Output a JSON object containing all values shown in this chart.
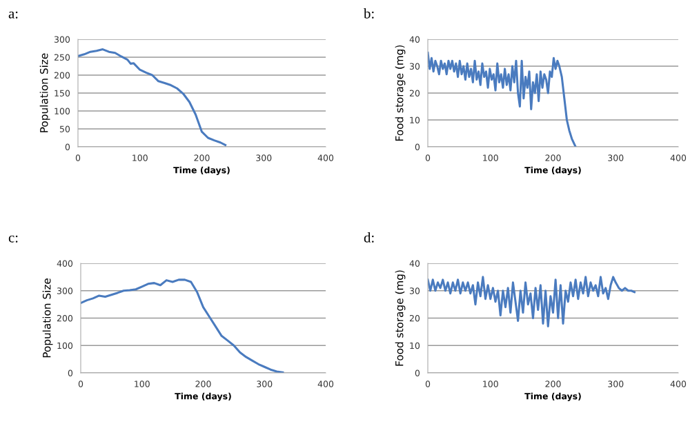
{
  "chart_data": [
    {
      "type": "line",
      "title": "a:",
      "xlabel": "Time (days)",
      "ylabel": "Population Size",
      "xlim": [
        0,
        400
      ],
      "ylim": [
        0,
        300
      ],
      "xticks": [
        0,
        100,
        200,
        300,
        400
      ],
      "yticks": [
        0,
        50,
        100,
        150,
        200,
        250,
        300
      ],
      "grid": "y",
      "legend": false,
      "series": [
        {
          "color": "#4a7bbf",
          "x": [
            0,
            10,
            20,
            30,
            40,
            50,
            60,
            70,
            80,
            85,
            90,
            100,
            110,
            120,
            130,
            140,
            150,
            160,
            170,
            180,
            190,
            200,
            210,
            220,
            230,
            238
          ],
          "values": [
            253,
            258,
            265,
            268,
            272,
            265,
            262,
            252,
            243,
            232,
            233,
            215,
            207,
            200,
            183,
            178,
            172,
            163,
            148,
            125,
            90,
            42,
            25,
            18,
            12,
            5
          ]
        }
      ]
    },
    {
      "type": "line",
      "title": "b:",
      "xlabel": "Time (days)",
      "ylabel": "Food storage (mg)",
      "xlim": [
        0,
        400
      ],
      "ylim": [
        0,
        40
      ],
      "xticks": [
        0,
        100,
        200,
        300,
        400
      ],
      "yticks": [
        0,
        10,
        20,
        30,
        40
      ],
      "grid": "y",
      "legend": false,
      "series": [
        {
          "color": "#4a7bbf",
          "x": [
            0,
            3,
            6,
            9,
            12,
            15,
            18,
            21,
            24,
            27,
            30,
            33,
            36,
            39,
            42,
            45,
            48,
            51,
            54,
            57,
            60,
            63,
            66,
            69,
            72,
            75,
            78,
            81,
            84,
            87,
            90,
            93,
            96,
            99,
            102,
            105,
            108,
            111,
            114,
            117,
            120,
            123,
            126,
            129,
            132,
            135,
            138,
            141,
            144,
            147,
            150,
            153,
            156,
            159,
            162,
            165,
            168,
            171,
            174,
            177,
            180,
            183,
            186,
            189,
            192,
            195,
            198,
            201,
            204,
            207,
            210,
            214,
            218,
            222,
            226,
            230,
            234,
            236
          ],
          "values": [
            35,
            29,
            33,
            28,
            32,
            30,
            27,
            32,
            29,
            31,
            27,
            32,
            29,
            32,
            28,
            31,
            26,
            32,
            27,
            30,
            25,
            31,
            26,
            29,
            24,
            32,
            25,
            28,
            23,
            31,
            26,
            28,
            22,
            29,
            25,
            27,
            21,
            31,
            24,
            27,
            22,
            29,
            23,
            27,
            21,
            30,
            24,
            32,
            20,
            15,
            32,
            18,
            26,
            22,
            28,
            14,
            24,
            20,
            27,
            17,
            28,
            22,
            27,
            25,
            20,
            28,
            26,
            33,
            29,
            32,
            30,
            26,
            18,
            10,
            6,
            3,
            1,
            0
          ]
        }
      ]
    },
    {
      "type": "line",
      "title": "c:",
      "xlabel": "Time (days)",
      "ylabel": "Population Size",
      "xlim": [
        0,
        400
      ],
      "ylim": [
        0,
        400
      ],
      "xticks": [
        0,
        100,
        200,
        300,
        400
      ],
      "yticks": [
        0,
        100,
        200,
        300,
        400
      ],
      "grid": "y",
      "legend": false,
      "series": [
        {
          "color": "#4a7bbf",
          "x": [
            0,
            10,
            20,
            30,
            40,
            50,
            60,
            70,
            80,
            90,
            100,
            110,
            120,
            130,
            140,
            150,
            160,
            170,
            180,
            190,
            200,
            210,
            220,
            230,
            240,
            250,
            260,
            270,
            280,
            290,
            300,
            310,
            320,
            330
          ],
          "values": [
            255,
            265,
            272,
            282,
            278,
            285,
            292,
            300,
            302,
            305,
            315,
            325,
            328,
            320,
            338,
            332,
            340,
            340,
            332,
            295,
            240,
            205,
            170,
            135,
            118,
            100,
            75,
            58,
            45,
            32,
            22,
            12,
            5,
            2
          ]
        }
      ]
    },
    {
      "type": "line",
      "title": "d:",
      "xlabel": "Time (days)",
      "ylabel": "Food storage (mg)",
      "xlim": [
        0,
        400
      ],
      "ylim": [
        0,
        40
      ],
      "xticks": [
        0,
        100,
        200,
        300,
        400
      ],
      "yticks": [
        0,
        10,
        20,
        30,
        40
      ],
      "grid": "y",
      "legend": false,
      "series": [
        {
          "color": "#4a7bbf",
          "x": [
            0,
            4,
            8,
            12,
            16,
            20,
            24,
            28,
            32,
            36,
            40,
            44,
            48,
            52,
            56,
            60,
            64,
            68,
            72,
            76,
            80,
            84,
            88,
            92,
            96,
            100,
            104,
            108,
            112,
            116,
            120,
            124,
            128,
            132,
            136,
            140,
            144,
            148,
            152,
            156,
            160,
            164,
            168,
            172,
            176,
            180,
            184,
            188,
            192,
            196,
            200,
            204,
            208,
            212,
            216,
            220,
            224,
            228,
            232,
            236,
            240,
            244,
            248,
            252,
            256,
            260,
            264,
            268,
            272,
            276,
            280,
            284,
            288,
            292,
            296,
            300,
            305,
            310,
            315,
            320,
            325,
            330
          ],
          "values": [
            34,
            30,
            34,
            30,
            33,
            31,
            34,
            30,
            33,
            29,
            33,
            30,
            34,
            29,
            33,
            30,
            33,
            29,
            32,
            25,
            33,
            28,
            35,
            27,
            32,
            27,
            31,
            26,
            30,
            21,
            30,
            24,
            31,
            22,
            33,
            26,
            19,
            30,
            22,
            33,
            25,
            29,
            20,
            31,
            23,
            32,
            18,
            30,
            17,
            28,
            22,
            34,
            20,
            32,
            18,
            30,
            26,
            33,
            28,
            34,
            27,
            33,
            29,
            35,
            28,
            33,
            30,
            32,
            28,
            35,
            29,
            31,
            27,
            32,
            35,
            33,
            31,
            30,
            31,
            30,
            30,
            29.5
          ]
        }
      ]
    }
  ]
}
